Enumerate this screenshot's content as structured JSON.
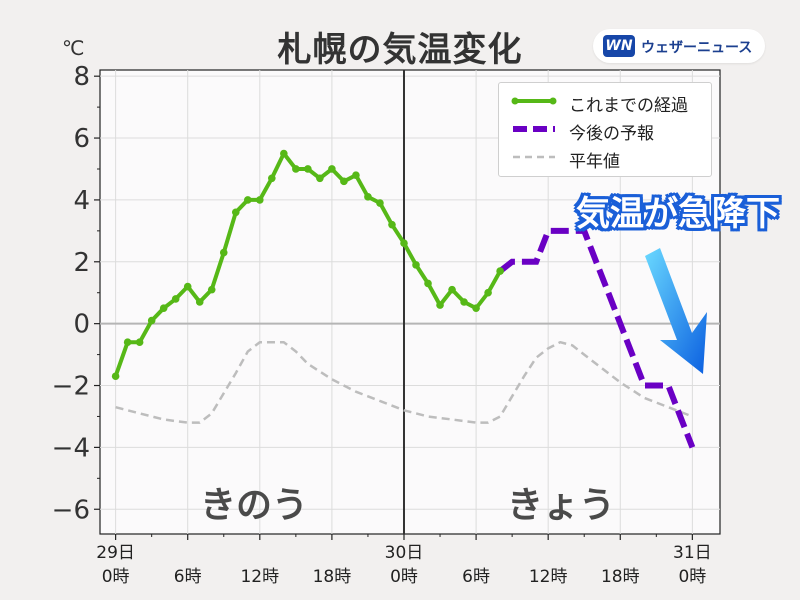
{
  "header": {
    "title": "札幌の気温変化",
    "unit": "℃",
    "brand": "ウェザーニュース",
    "brand_logo": "WN"
  },
  "annotation": {
    "headline": "気温が急降下"
  },
  "day_labels": [
    "きのう",
    "きょう"
  ],
  "colors": {
    "observed": "#56b817",
    "forecast": "#6a00c4",
    "normal": "#bdbdbd",
    "accent_blue": "#1a5fd8"
  },
  "chart_data": {
    "type": "line",
    "title": "札幌の気温変化",
    "ylabel": "℃",
    "ylim": [
      -6.8,
      8.2
    ],
    "xlim": [
      -1.3,
      50.3
    ],
    "yticks": [
      8,
      6,
      4,
      2,
      0,
      -2,
      -4,
      -6
    ],
    "ytick_labels": [
      "8",
      "6",
      "4",
      "2",
      "0",
      "−2",
      "−4",
      "−6"
    ],
    "xticks": [
      {
        "x": 0,
        "top": "29日",
        "bottom": "0時"
      },
      {
        "x": 6,
        "top": "",
        "bottom": "6時"
      },
      {
        "x": 12,
        "top": "",
        "bottom": "12時"
      },
      {
        "x": 18,
        "top": "",
        "bottom": "18時"
      },
      {
        "x": 24,
        "top": "30日",
        "bottom": "0時"
      },
      {
        "x": 30,
        "top": "",
        "bottom": "6時"
      },
      {
        "x": 36,
        "top": "",
        "bottom": "12時"
      },
      {
        "x": 42,
        "top": "",
        "bottom": "18時"
      },
      {
        "x": 48,
        "top": "31日",
        "bottom": "0時"
      }
    ],
    "divider_x": 24,
    "grid": true,
    "legend_position": "top-right",
    "series": [
      {
        "name": "これまでの経過",
        "style": "solid-markers",
        "x": [
          0,
          1,
          2,
          3,
          4,
          5,
          6,
          7,
          8,
          9,
          10,
          11,
          12,
          13,
          14,
          15,
          16,
          17,
          18,
          19,
          20,
          21,
          22,
          23,
          24,
          25,
          26,
          27,
          28,
          29,
          30,
          31,
          32
        ],
        "y": [
          -1.7,
          -0.6,
          -0.6,
          0.1,
          0.5,
          0.8,
          1.2,
          0.7,
          1.1,
          2.3,
          3.6,
          4.0,
          4.0,
          4.7,
          5.5,
          5.0,
          5.0,
          4.7,
          5.0,
          4.6,
          4.8,
          4.1,
          3.9,
          3.2,
          2.6,
          1.9,
          1.3,
          0.6,
          1.1,
          0.7,
          0.5,
          1.0,
          1.7
        ]
      },
      {
        "name": "今後の予報",
        "style": "dashed",
        "x": [
          32,
          33,
          34,
          35,
          36,
          37,
          38,
          39,
          40,
          41,
          42,
          43,
          44,
          45,
          46,
          47,
          48
        ],
        "y": [
          1.7,
          2.0,
          2.0,
          2.0,
          3.0,
          3.0,
          3.0,
          3.0,
          2.0,
          1.0,
          0.0,
          -1.0,
          -2.0,
          -2.0,
          -2.0,
          -3.0,
          -4.0
        ]
      },
      {
        "name": "平年値",
        "style": "dashed-light",
        "x": [
          0,
          2,
          4,
          6,
          7,
          8,
          10,
          11,
          12,
          13,
          14,
          15,
          16,
          18,
          20,
          22,
          24,
          26,
          28,
          30,
          31,
          32,
          34,
          35,
          36,
          37,
          38,
          39,
          40,
          42,
          44,
          46,
          48
        ],
        "y": [
          -2.7,
          -2.9,
          -3.1,
          -3.2,
          -3.2,
          -2.9,
          -1.6,
          -0.9,
          -0.6,
          -0.6,
          -0.6,
          -0.9,
          -1.3,
          -1.8,
          -2.2,
          -2.5,
          -2.8,
          -3.0,
          -3.1,
          -3.2,
          -3.2,
          -3.0,
          -1.7,
          -1.1,
          -0.8,
          -0.6,
          -0.7,
          -1.0,
          -1.3,
          -1.9,
          -2.4,
          -2.7,
          -3.0
        ]
      }
    ]
  }
}
